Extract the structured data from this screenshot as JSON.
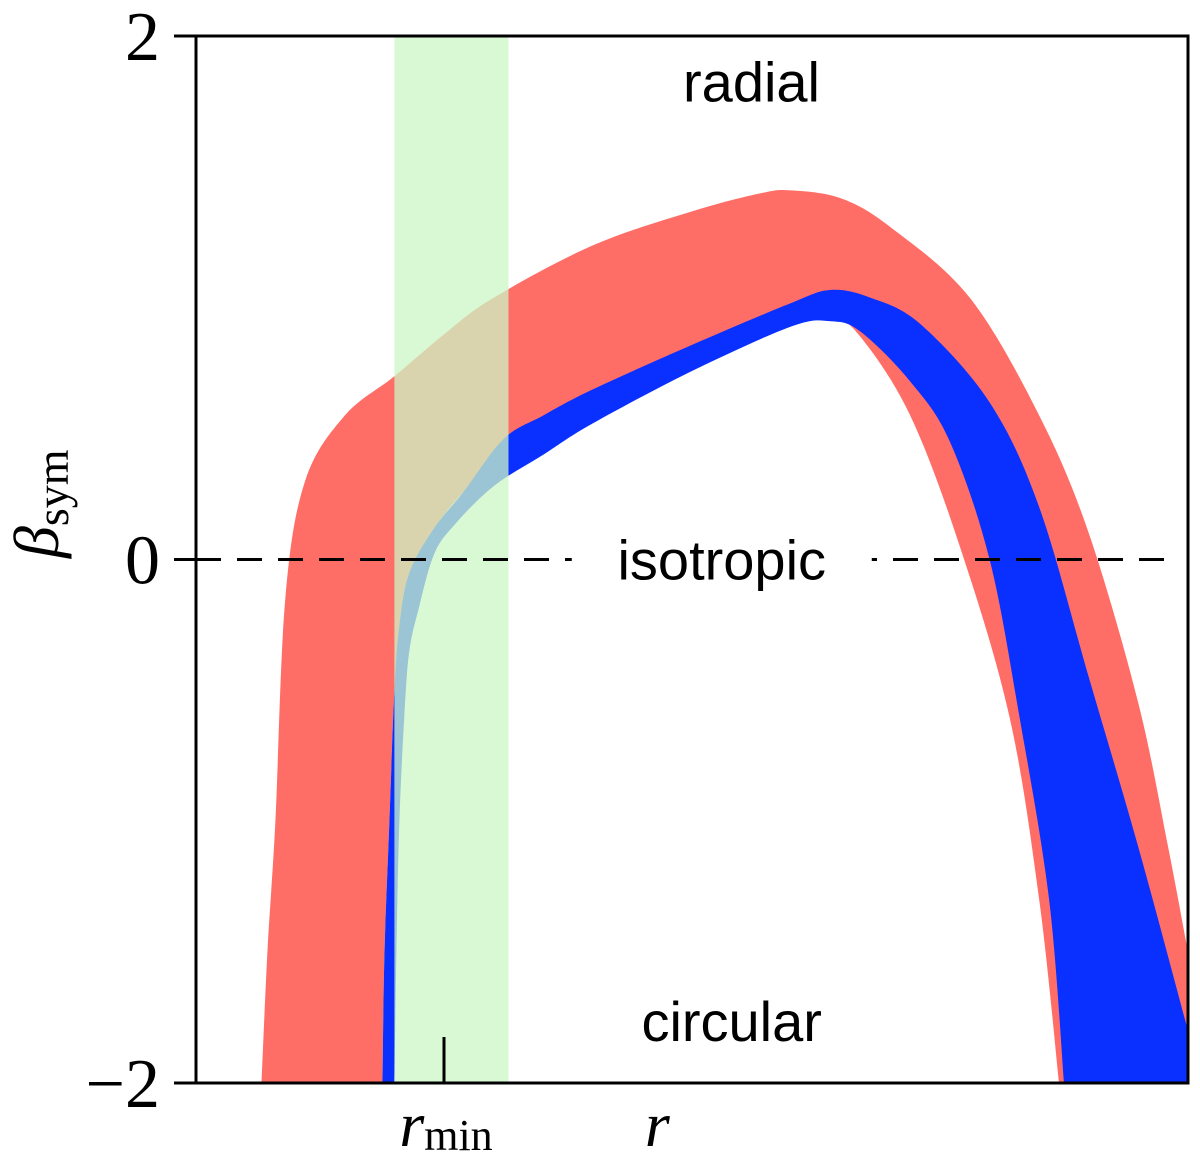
{
  "chart_data": {
    "type": "area",
    "title": "",
    "ylabel": "β",
    "ylabel_sub": "sym",
    "xlabel": "r",
    "ylim": [
      -2,
      2
    ],
    "yticks": [
      {
        "value": 2,
        "label": "2"
      },
      {
        "value": 0,
        "label": "0"
      },
      {
        "value": -2,
        "label": "−2"
      }
    ],
    "x_marker": {
      "name": "r",
      "sub": "min",
      "value": 0.25
    },
    "reference_line": {
      "y": 0,
      "style": "dashed",
      "label": "isotropic"
    },
    "region_labels": {
      "top": "radial",
      "bottom": "circular"
    },
    "highlight_band": {
      "x": [
        0.2,
        0.315
      ],
      "color": "#ccf7c6"
    },
    "series": [
      {
        "color": "#ff6e66",
        "upper": [
          [
            0.066,
            -2.0
          ],
          [
            0.072,
            -1.5
          ],
          [
            0.08,
            -1.0
          ],
          [
            0.09,
            -0.15
          ],
          [
            0.11,
            0.3
          ],
          [
            0.15,
            0.55
          ],
          [
            0.2,
            0.7
          ],
          [
            0.25,
            0.86
          ],
          [
            0.3,
            1.0
          ],
          [
            0.4,
            1.2
          ],
          [
            0.5,
            1.33
          ],
          [
            0.57,
            1.4
          ],
          [
            0.6,
            1.41
          ],
          [
            0.65,
            1.38
          ],
          [
            0.7,
            1.27
          ],
          [
            0.78,
            1.0
          ],
          [
            0.85,
            0.55
          ],
          [
            0.9,
            0.1
          ],
          [
            0.95,
            -0.55
          ],
          [
            0.98,
            -1.1
          ],
          [
            1.0,
            -1.5
          ]
        ],
        "lower": [
          [
            0.188,
            -2.0
          ],
          [
            0.19,
            -1.5
          ],
          [
            0.195,
            -1.0
          ],
          [
            0.2,
            -0.5
          ],
          [
            0.205,
            -0.25
          ],
          [
            0.215,
            -0.05
          ],
          [
            0.24,
            0.12
          ],
          [
            0.27,
            0.26
          ],
          [
            0.3,
            0.37
          ],
          [
            0.35,
            0.5
          ],
          [
            0.4,
            0.62
          ],
          [
            0.5,
            0.79
          ],
          [
            0.6,
            0.91
          ],
          [
            0.64,
            0.93
          ],
          [
            0.67,
            0.85
          ],
          [
            0.72,
            0.55
          ],
          [
            0.77,
            0.05
          ],
          [
            0.82,
            -0.6
          ],
          [
            0.85,
            -1.3
          ],
          [
            0.87,
            -2.0
          ]
        ]
      },
      {
        "color": "#0a30ff",
        "upper": [
          [
            0.188,
            -2.0
          ],
          [
            0.19,
            -1.5
          ],
          [
            0.195,
            -1.0
          ],
          [
            0.2,
            -0.5
          ],
          [
            0.205,
            -0.25
          ],
          [
            0.215,
            -0.05
          ],
          [
            0.24,
            0.12
          ],
          [
            0.27,
            0.26
          ],
          [
            0.31,
            0.46
          ],
          [
            0.35,
            0.55
          ],
          [
            0.4,
            0.65
          ],
          [
            0.5,
            0.82
          ],
          [
            0.6,
            0.98
          ],
          [
            0.64,
            1.03
          ],
          [
            0.68,
            1.0
          ],
          [
            0.73,
            0.9
          ],
          [
            0.8,
            0.6
          ],
          [
            0.85,
            0.2
          ],
          [
            0.9,
            -0.45
          ],
          [
            0.95,
            -1.1
          ],
          [
            1.0,
            -1.8
          ]
        ],
        "lower": [
          [
            0.2,
            -2.0
          ],
          [
            0.202,
            -1.5
          ],
          [
            0.205,
            -1.0
          ],
          [
            0.21,
            -0.6
          ],
          [
            0.215,
            -0.35
          ],
          [
            0.225,
            -0.18
          ],
          [
            0.24,
            0.02
          ],
          [
            0.26,
            0.13
          ],
          [
            0.3,
            0.28
          ],
          [
            0.35,
            0.4
          ],
          [
            0.4,
            0.52
          ],
          [
            0.5,
            0.72
          ],
          [
            0.6,
            0.89
          ],
          [
            0.64,
            0.91
          ],
          [
            0.67,
            0.87
          ],
          [
            0.72,
            0.68
          ],
          [
            0.76,
            0.45
          ],
          [
            0.8,
            0.0
          ],
          [
            0.83,
            -0.6
          ],
          [
            0.86,
            -1.3
          ],
          [
            0.875,
            -2.0
          ]
        ]
      }
    ]
  }
}
